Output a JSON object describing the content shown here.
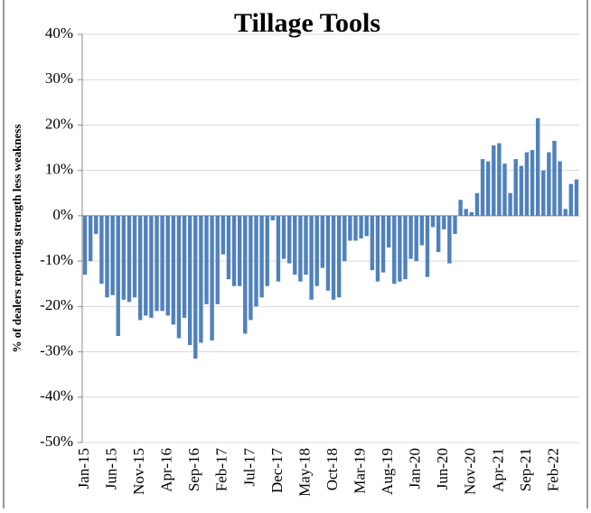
{
  "chart_data": {
    "type": "bar",
    "title": "Tillage Tools",
    "y_label": "% of dealers reporting  strength less weakness",
    "categories": [
      "Jan-15",
      null,
      null,
      null,
      null,
      "Jun-15",
      null,
      null,
      null,
      null,
      "Nov-15",
      null,
      null,
      null,
      null,
      "Apr-16",
      null,
      null,
      null,
      null,
      "Sep-16",
      null,
      null,
      null,
      null,
      "Feb-17",
      null,
      null,
      null,
      null,
      "Jul-17",
      null,
      null,
      null,
      null,
      "Dec-17",
      null,
      null,
      null,
      null,
      "May-18",
      null,
      null,
      null,
      null,
      "Oct-18",
      null,
      null,
      null,
      null,
      "Mar-19",
      null,
      null,
      null,
      null,
      "Aug-19",
      null,
      null,
      null,
      null,
      "Jan-20",
      null,
      null,
      null,
      null,
      "Jun-20",
      null,
      null,
      null,
      null,
      "Nov-20",
      null,
      null,
      null,
      null,
      "Apr-21",
      null,
      null,
      null,
      null,
      "Sep-21",
      null,
      null,
      null,
      null,
      "Feb-22",
      null,
      null,
      null,
      null
    ],
    "values": [
      -13,
      -10,
      -4,
      -15,
      -18,
      -17.5,
      -26.5,
      -18.5,
      -19,
      -18,
      -23,
      -22,
      -22.5,
      -21,
      -21,
      -22,
      -24,
      -27,
      -22.5,
      -28.5,
      -31.5,
      -28,
      -19.5,
      -27.5,
      -19.5,
      -8.5,
      -14,
      -15.5,
      -15.5,
      -26,
      -23,
      -20,
      -18,
      -15.5,
      -1,
      -14.5,
      -9.5,
      -10.5,
      -13,
      -14.5,
      -13,
      -18.5,
      -15.5,
      -11.5,
      -16.5,
      -18.5,
      -18,
      -10,
      -5.5,
      -5.5,
      -5,
      -4.5,
      -12,
      -14.5,
      -12.5,
      -7,
      -15,
      -14.5,
      -14,
      -9.5,
      -10,
      -6.5,
      -13.5,
      -2.5,
      -8,
      -3,
      -10.5,
      -4,
      3.5,
      1.5,
      0.8,
      5,
      12.5,
      12,
      15.5,
      16,
      11.5,
      5,
      12.5,
      11,
      14,
      14.5,
      21.5,
      10,
      14,
      16.5,
      12,
      1.5,
      7,
      8
    ],
    "color": "#4f81bd",
    "ylim": [
      -50,
      40
    ],
    "yticks": [
      {
        "value": -50,
        "label": "-50%"
      },
      {
        "value": -40,
        "label": "-40%"
      },
      {
        "value": -30,
        "label": "-30%"
      },
      {
        "value": -20,
        "label": "-20%"
      },
      {
        "value": -10,
        "label": "-10%"
      },
      {
        "value": 0,
        "label": "0%"
      },
      {
        "value": 10,
        "label": "10%"
      },
      {
        "value": 20,
        "label": "20%"
      },
      {
        "value": 30,
        "label": "30%"
      },
      {
        "value": 40,
        "label": "40%"
      }
    ],
    "grid": true
  }
}
